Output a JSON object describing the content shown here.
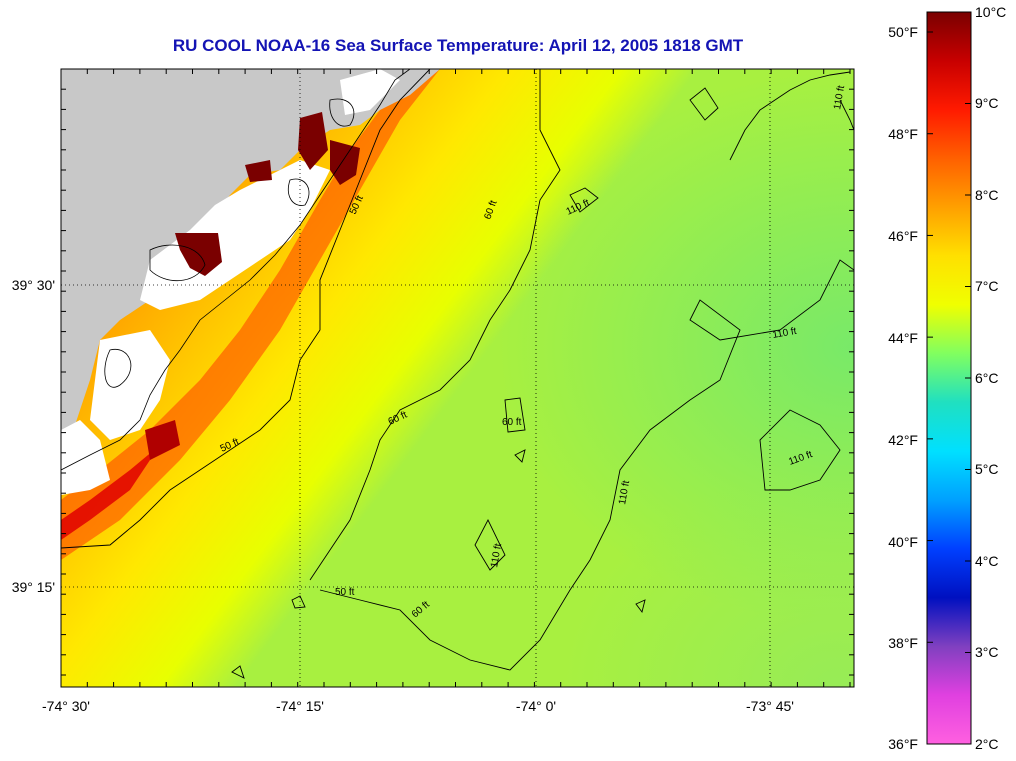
{
  "title": "RU COOL  NOAA-16  Sea Surface Temperature:  April 12, 2005 1818 GMT",
  "map": {
    "lon_ticks": [
      "-74° 30'",
      "-74° 15'",
      "-74° 0'",
      "-73° 45'"
    ],
    "lat_ticks": [
      "39° 30'",
      "39° 15'"
    ],
    "land_color": "#c8c8c8",
    "cloud_color": "#ffffff",
    "grid": "dotted",
    "contours": [
      {
        "label": "50 ft"
      },
      {
        "label": "50 ft"
      },
      {
        "label": "50 ft"
      },
      {
        "label": "60 ft"
      },
      {
        "label": "60 ft"
      },
      {
        "label": "60 ft"
      },
      {
        "label": "60 ft"
      },
      {
        "label": "110 ft"
      },
      {
        "label": "110 ft"
      },
      {
        "label": "110 ft"
      },
      {
        "label": "110 ft"
      },
      {
        "label": "110 ft"
      },
      {
        "label": "110 ft"
      }
    ]
  },
  "colorbar": {
    "fahrenheit_labels": [
      "50°F",
      "48°F",
      "46°F",
      "44°F",
      "42°F",
      "40°F",
      "38°F",
      "36°F"
    ],
    "celsius_labels": [
      "10°C",
      "9°C",
      "8°C",
      "7°C",
      "6°C",
      "5°C",
      "4°C",
      "3°C",
      "2°C"
    ],
    "gradient_colors": [
      "#7a0000",
      "#c80000",
      "#ff1a00",
      "#ff6000",
      "#ffa000",
      "#ffe000",
      "#f0ff00",
      "#80ff60",
      "#20e0c0",
      "#00e0ff",
      "#00a0ff",
      "#0040ff",
      "#0010c0",
      "#8040c0",
      "#e040e0",
      "#ff60e0"
    ]
  }
}
